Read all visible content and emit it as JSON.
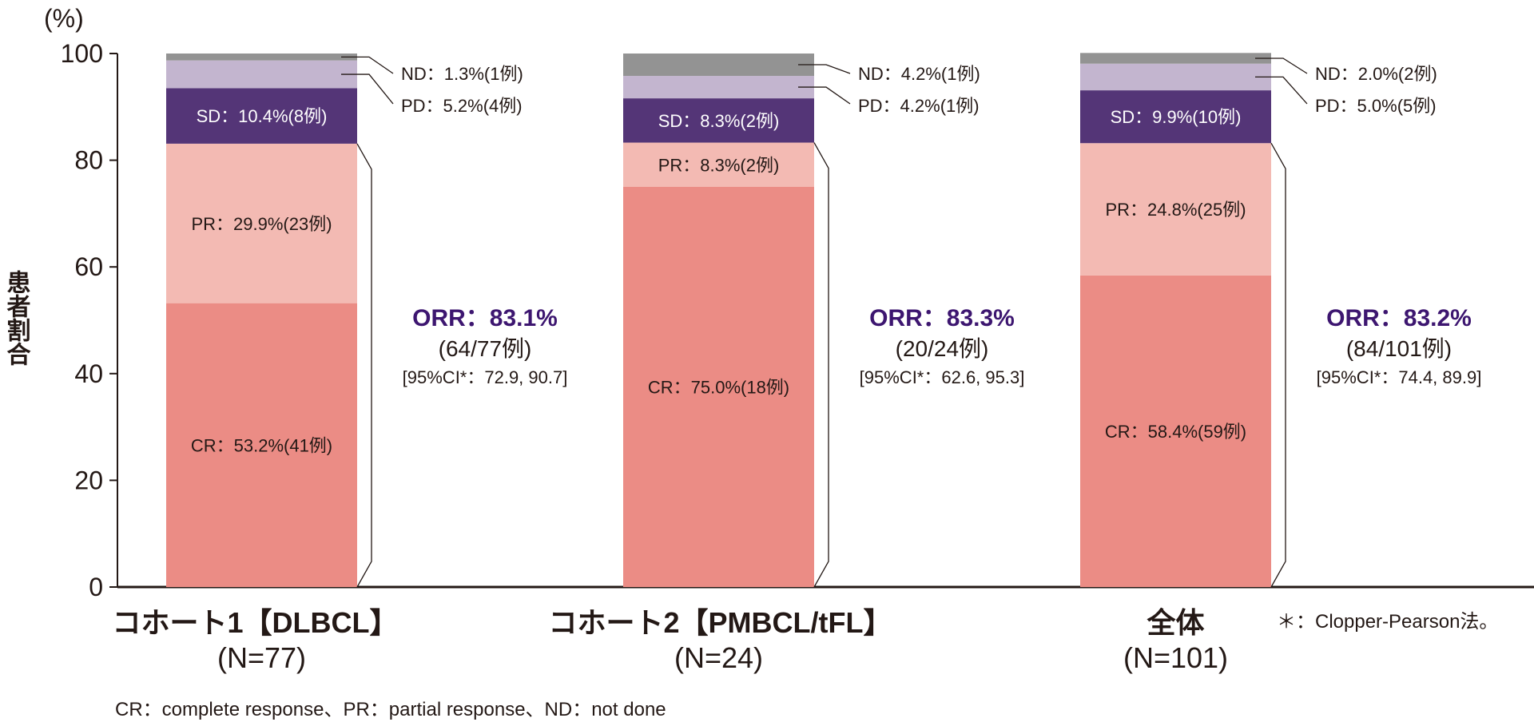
{
  "chart_data": {
    "type": "bar",
    "stacked": true,
    "title": "",
    "xlabel": "",
    "ylabel": "患者割合",
    "yunit": "(%)",
    "ylim": [
      0,
      100
    ],
    "yticks": [
      "0",
      "20",
      "40",
      "60",
      "80",
      "100"
    ],
    "colors": {
      "CR": "#eb8c85",
      "PR": "#f3bab3",
      "SD": "#543577",
      "PD": "#c3b5cf",
      "ND": "#939393"
    },
    "orr_color": "#3d1670",
    "categories": [
      {
        "name": "コホート1【DLBCL】",
        "n": "(N=77)",
        "segments": [
          {
            "key": "CR",
            "value": 53.2,
            "label": "CR：53.2%(41例)"
          },
          {
            "key": "PR",
            "value": 29.9,
            "label": "PR：29.9%(23例)"
          },
          {
            "key": "SD",
            "value": 10.4,
            "label": "SD：10.4%(8例)"
          },
          {
            "key": "PD",
            "value": 5.2,
            "label": "PD：5.2%(4例)"
          },
          {
            "key": "ND",
            "value": 1.3,
            "label": "ND：1.3%(1例)"
          }
        ],
        "orr": "ORR：83.1%",
        "orr_value": 83.1,
        "orr_n": "(64/77例)",
        "ci": "[95%CI*：72.9, 90.7]"
      },
      {
        "name": "コホート2【PMBCL/tFL】",
        "n": "(N=24)",
        "segments": [
          {
            "key": "CR",
            "value": 75.0,
            "label": "CR：75.0%(18例)"
          },
          {
            "key": "PR",
            "value": 8.3,
            "label": "PR：8.3%(2例)"
          },
          {
            "key": "SD",
            "value": 8.3,
            "label": "SD：8.3%(2例)"
          },
          {
            "key": "PD",
            "value": 4.2,
            "label": "PD：4.2%(1例)"
          },
          {
            "key": "ND",
            "value": 4.2,
            "label": "ND：4.2%(1例)"
          }
        ],
        "orr": "ORR：83.3%",
        "orr_value": 83.3,
        "orr_n": "(20/24例)",
        "ci": "[95%CI*：62.6, 95.3]"
      },
      {
        "name": "全体",
        "n": "(N=101)",
        "segments": [
          {
            "key": "CR",
            "value": 58.4,
            "label": "CR：58.4%(59例)"
          },
          {
            "key": "PR",
            "value": 24.8,
            "label": "PR：24.8%(25例)"
          },
          {
            "key": "SD",
            "value": 9.9,
            "label": "SD：9.9%(10例)"
          },
          {
            "key": "PD",
            "value": 5.0,
            "label": "PD：5.0%(5例)"
          },
          {
            "key": "ND",
            "value": 2.0,
            "label": "ND：2.0%(2例)"
          }
        ],
        "orr": "ORR：83.2%",
        "orr_value": 83.2,
        "orr_n": "(84/101例)",
        "ci": "[95%CI*：74.4, 89.9]"
      }
    ],
    "footnote": "＊：Clopper-Pearson法。",
    "abbreviations": "CR：complete response、PR：partial response、ND：not done"
  }
}
